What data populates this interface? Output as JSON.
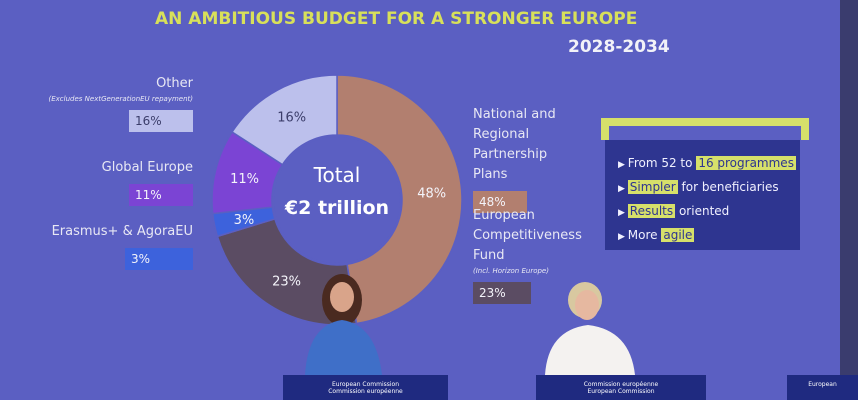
{
  "chart_data": {
    "type": "donut",
    "title": "AN AMBITIOUS BUDGET FOR A STRONGER EUROPE",
    "subtitle": "2028-2034",
    "center_label": [
      "Total",
      "€2 trillion"
    ],
    "categories": [
      "National and Regional Partnership Plans",
      "European Competitiveness Fund",
      "Erasmus+ & AgoraEU",
      "Global Europe",
      "Other"
    ],
    "notes": [
      null,
      "(Incl. Horizon Europe)",
      null,
      null,
      "(Excludes NextGenerationEU repayment)"
    ],
    "values": [
      48,
      23,
      3,
      11,
      16
    ],
    "value_labels": [
      "48%",
      "23%",
      "3%",
      "11%",
      "16%"
    ],
    "colors": [
      "#b27f6f",
      "#5b4c63",
      "#3d62dc",
      "#7b44d4",
      "#bcc0ec"
    ]
  },
  "highlights": {
    "bullets": [
      [
        {
          "text": "From 52 to"
        },
        {
          "text": "16 programmes",
          "highlight": true
        }
      ],
      [
        {
          "text": "Simpler",
          "highlight": true
        },
        {
          "text": "for beneficiaries"
        }
      ],
      [
        {
          "text": "Results",
          "highlight": true
        },
        {
          "text": "oriented"
        }
      ],
      [
        {
          "text": "More"
        },
        {
          "text": "agile",
          "highlight": true
        }
      ]
    ]
  },
  "podiums": [
    [
      "European Commission",
      "Commission européenne"
    ],
    [
      "Commission européenne",
      "European Commission"
    ],
    [
      "European"
    ]
  ]
}
